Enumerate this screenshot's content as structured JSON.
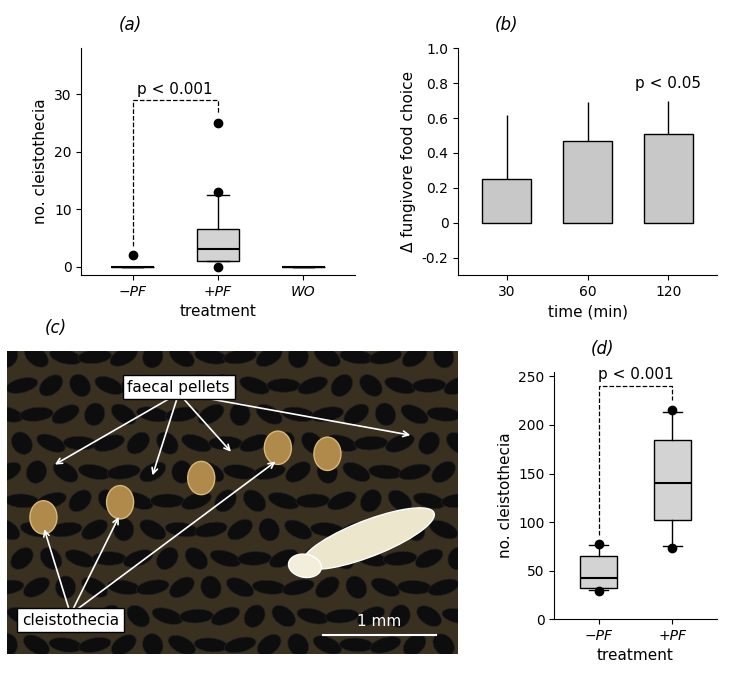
{
  "chart_data": [
    {
      "type": "box",
      "title": "(a)",
      "x_label": "treatment",
      "y_label": "no. cleistothecia",
      "categories": [
        "−PF",
        "+PF",
        "WO"
      ],
      "boxes": [
        {
          "median": 0,
          "q1": 0,
          "q3": 0,
          "whisker_low": 0,
          "whisker_high": 0,
          "outliers": [
            2
          ]
        },
        {
          "median": 3,
          "q1": 1,
          "q3": 6.5,
          "whisker_low": 1,
          "whisker_high": 12.5,
          "outliers": [
            0,
            13,
            25
          ]
        },
        {
          "median": 0,
          "q1": 0,
          "q3": 0,
          "whisker_low": 0,
          "whisker_high": 0,
          "outliers": []
        }
      ],
      "color": "#d3d3d3",
      "ylim": [
        -1.5,
        38
      ],
      "yticks": [
        0,
        10,
        20,
        30
      ],
      "annotations": [
        {
          "text": "p < 0.001",
          "between": [
            "−PF",
            "+PF"
          ]
        }
      ]
    },
    {
      "type": "bar",
      "title": "(b)",
      "x_label": "time (min)",
      "y_label": "Δ fungivore food choice",
      "categories": [
        "30",
        "60",
        "120"
      ],
      "values": [
        0.25,
        0.47,
        0.51
      ],
      "errors": [
        0.37,
        0.22,
        0.19
      ],
      "color": "#c8c8c8",
      "ylim": [
        -0.3,
        1.0
      ],
      "yticks": [
        -0.2,
        0,
        0.2,
        0.4,
        0.6,
        0.8,
        1.0
      ],
      "annotations": [
        {
          "text": "p < 0.05",
          "category": "120"
        }
      ]
    },
    {
      "type": "box",
      "title": "(d)",
      "x_label": "treatment",
      "y_label": "no. cleistothecia",
      "categories": [
        "−PF",
        "+PF"
      ],
      "boxes": [
        {
          "median": 42,
          "q1": 32,
          "q3": 65,
          "whisker_low": 30,
          "whisker_high": 76,
          "outliers": [
            29,
            77
          ]
        },
        {
          "median": 140,
          "q1": 102,
          "q3": 184,
          "whisker_low": 75,
          "whisker_high": 213,
          "outliers": [
            73,
            215
          ]
        }
      ],
      "color": "#d3d3d3",
      "ylim": [
        0,
        255
      ],
      "yticks": [
        0,
        50,
        100,
        150,
        200,
        250
      ],
      "annotations": [
        {
          "text": "p < 0.001",
          "between": [
            "−PF",
            "+PF"
          ]
        }
      ]
    }
  ],
  "image": {
    "title": "(c)",
    "labels": {
      "faecal_pellets": "faecal pellets",
      "cleistothecia": "cleistothecia"
    },
    "scale_bar": "1 mm"
  }
}
